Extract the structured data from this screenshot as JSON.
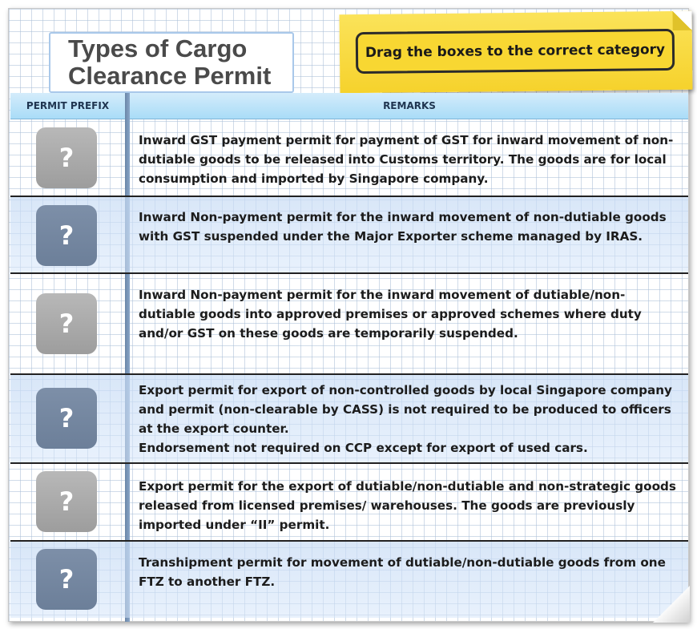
{
  "title": {
    "line1": "Types of Cargo",
    "line2": "Clearance Permit"
  },
  "instruction": "Drag the boxes to the correct category",
  "table": {
    "headers": {
      "prefix": "PERMIT PREFIX",
      "remarks": "REMARKS"
    },
    "rows": [
      {
        "placeholder": "?",
        "remark_lines": [
          "Inward GST payment permit for payment of GST for inward movement of non-dutiable goods to be released into Customs territory. The goods are for local consumption and imported by Singapore company."
        ]
      },
      {
        "placeholder": "?",
        "remark_lines": [
          "Inward Non-payment permit for the inward movement of non-dutiable goods with GST suspended under the Major Exporter scheme managed by IRAS."
        ]
      },
      {
        "placeholder": "?",
        "remark_lines": [
          "Inward Non-payment permit for the inward movement of dutiable/non-dutiable goods into approved premises or approved schemes where duty and/or GST on these goods are temporarily suspended."
        ]
      },
      {
        "placeholder": "?",
        "remark_lines": [
          "Export permit for export of non-controlled goods by local Singapore company and permit (non-clearable by CASS) is not required to be produced to officers at the export counter.",
          "Endorsement not required on CCP except for export of used cars."
        ]
      },
      {
        "placeholder": "?",
        "remark_lines": [
          "Export permit for the export of dutiable/non-dutiable and non-strategic goods released from licensed premises/ warehouses. The goods are previously imported under “II” permit."
        ]
      },
      {
        "placeholder": "?",
        "remark_lines": [
          "Transhipment permit for movement of dutiable/non-dutiable goods from one FTZ to another FTZ."
        ]
      }
    ]
  }
}
